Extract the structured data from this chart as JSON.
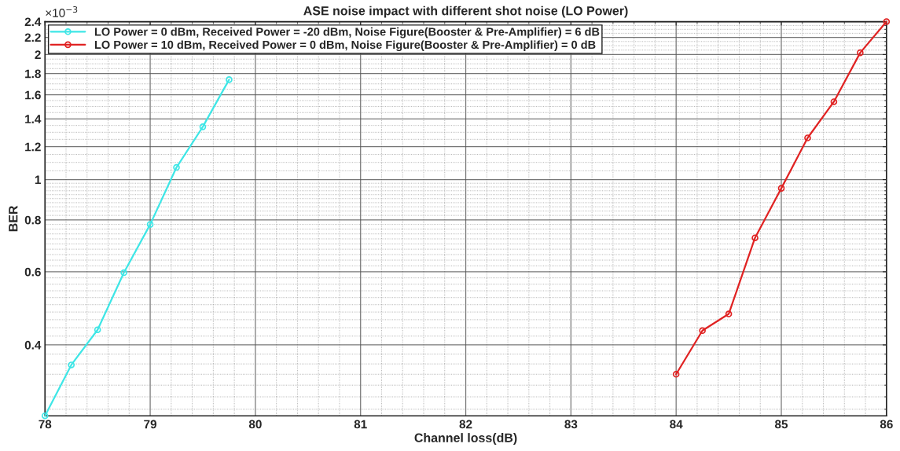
{
  "chart_data": {
    "type": "line",
    "title": "ASE noise impact with different shot noise (LO Power)",
    "xlabel": "Channel loss(dB)",
    "ylabel": "BER",
    "annotations": [
      "×10$^{−3}$"
    ],
    "series": [
      {
        "name": "LO Power = 0 dBm, Received Power = -20 dBm, Noise Figure(Booster & Pre-Amplifier) = 6 dB",
        "color": "#3ee6e6",
        "x": [
          78,
          78.25,
          78.5,
          78.75,
          79,
          79.25,
          79.5,
          79.75
        ],
        "values": [
          0.27,
          0.358,
          0.435,
          0.597,
          0.78,
          1.07,
          1.34,
          1.74
        ]
      },
      {
        "name": "LO Power = 10 dBm, Received Power = 0 dBm, Noise Figure(Booster & Pre-Amplifier) = 0 dB",
        "color": "#e02222",
        "x": [
          84,
          84.25,
          84.5,
          84.75,
          85,
          85.25,
          85.5,
          85.75,
          86
        ],
        "values": [
          0.34,
          0.433,
          0.475,
          0.724,
          0.953,
          1.26,
          1.54,
          2.02,
          2.4
        ]
      }
    ],
    "log": "y",
    "xlim": [
      78,
      86
    ],
    "xticks": [
      78,
      79,
      80,
      81,
      82,
      83,
      84,
      85,
      86
    ],
    "ylim": [
      0.27,
      2.4
    ],
    "yticks": [
      0.4,
      0.6,
      0.8,
      1,
      1.2,
      1.4,
      1.6,
      1.8,
      2,
      2.2,
      2.4
    ],
    "grid": true,
    "legend": "top left",
    "marker": "circle",
    "line_style": "solid"
  }
}
